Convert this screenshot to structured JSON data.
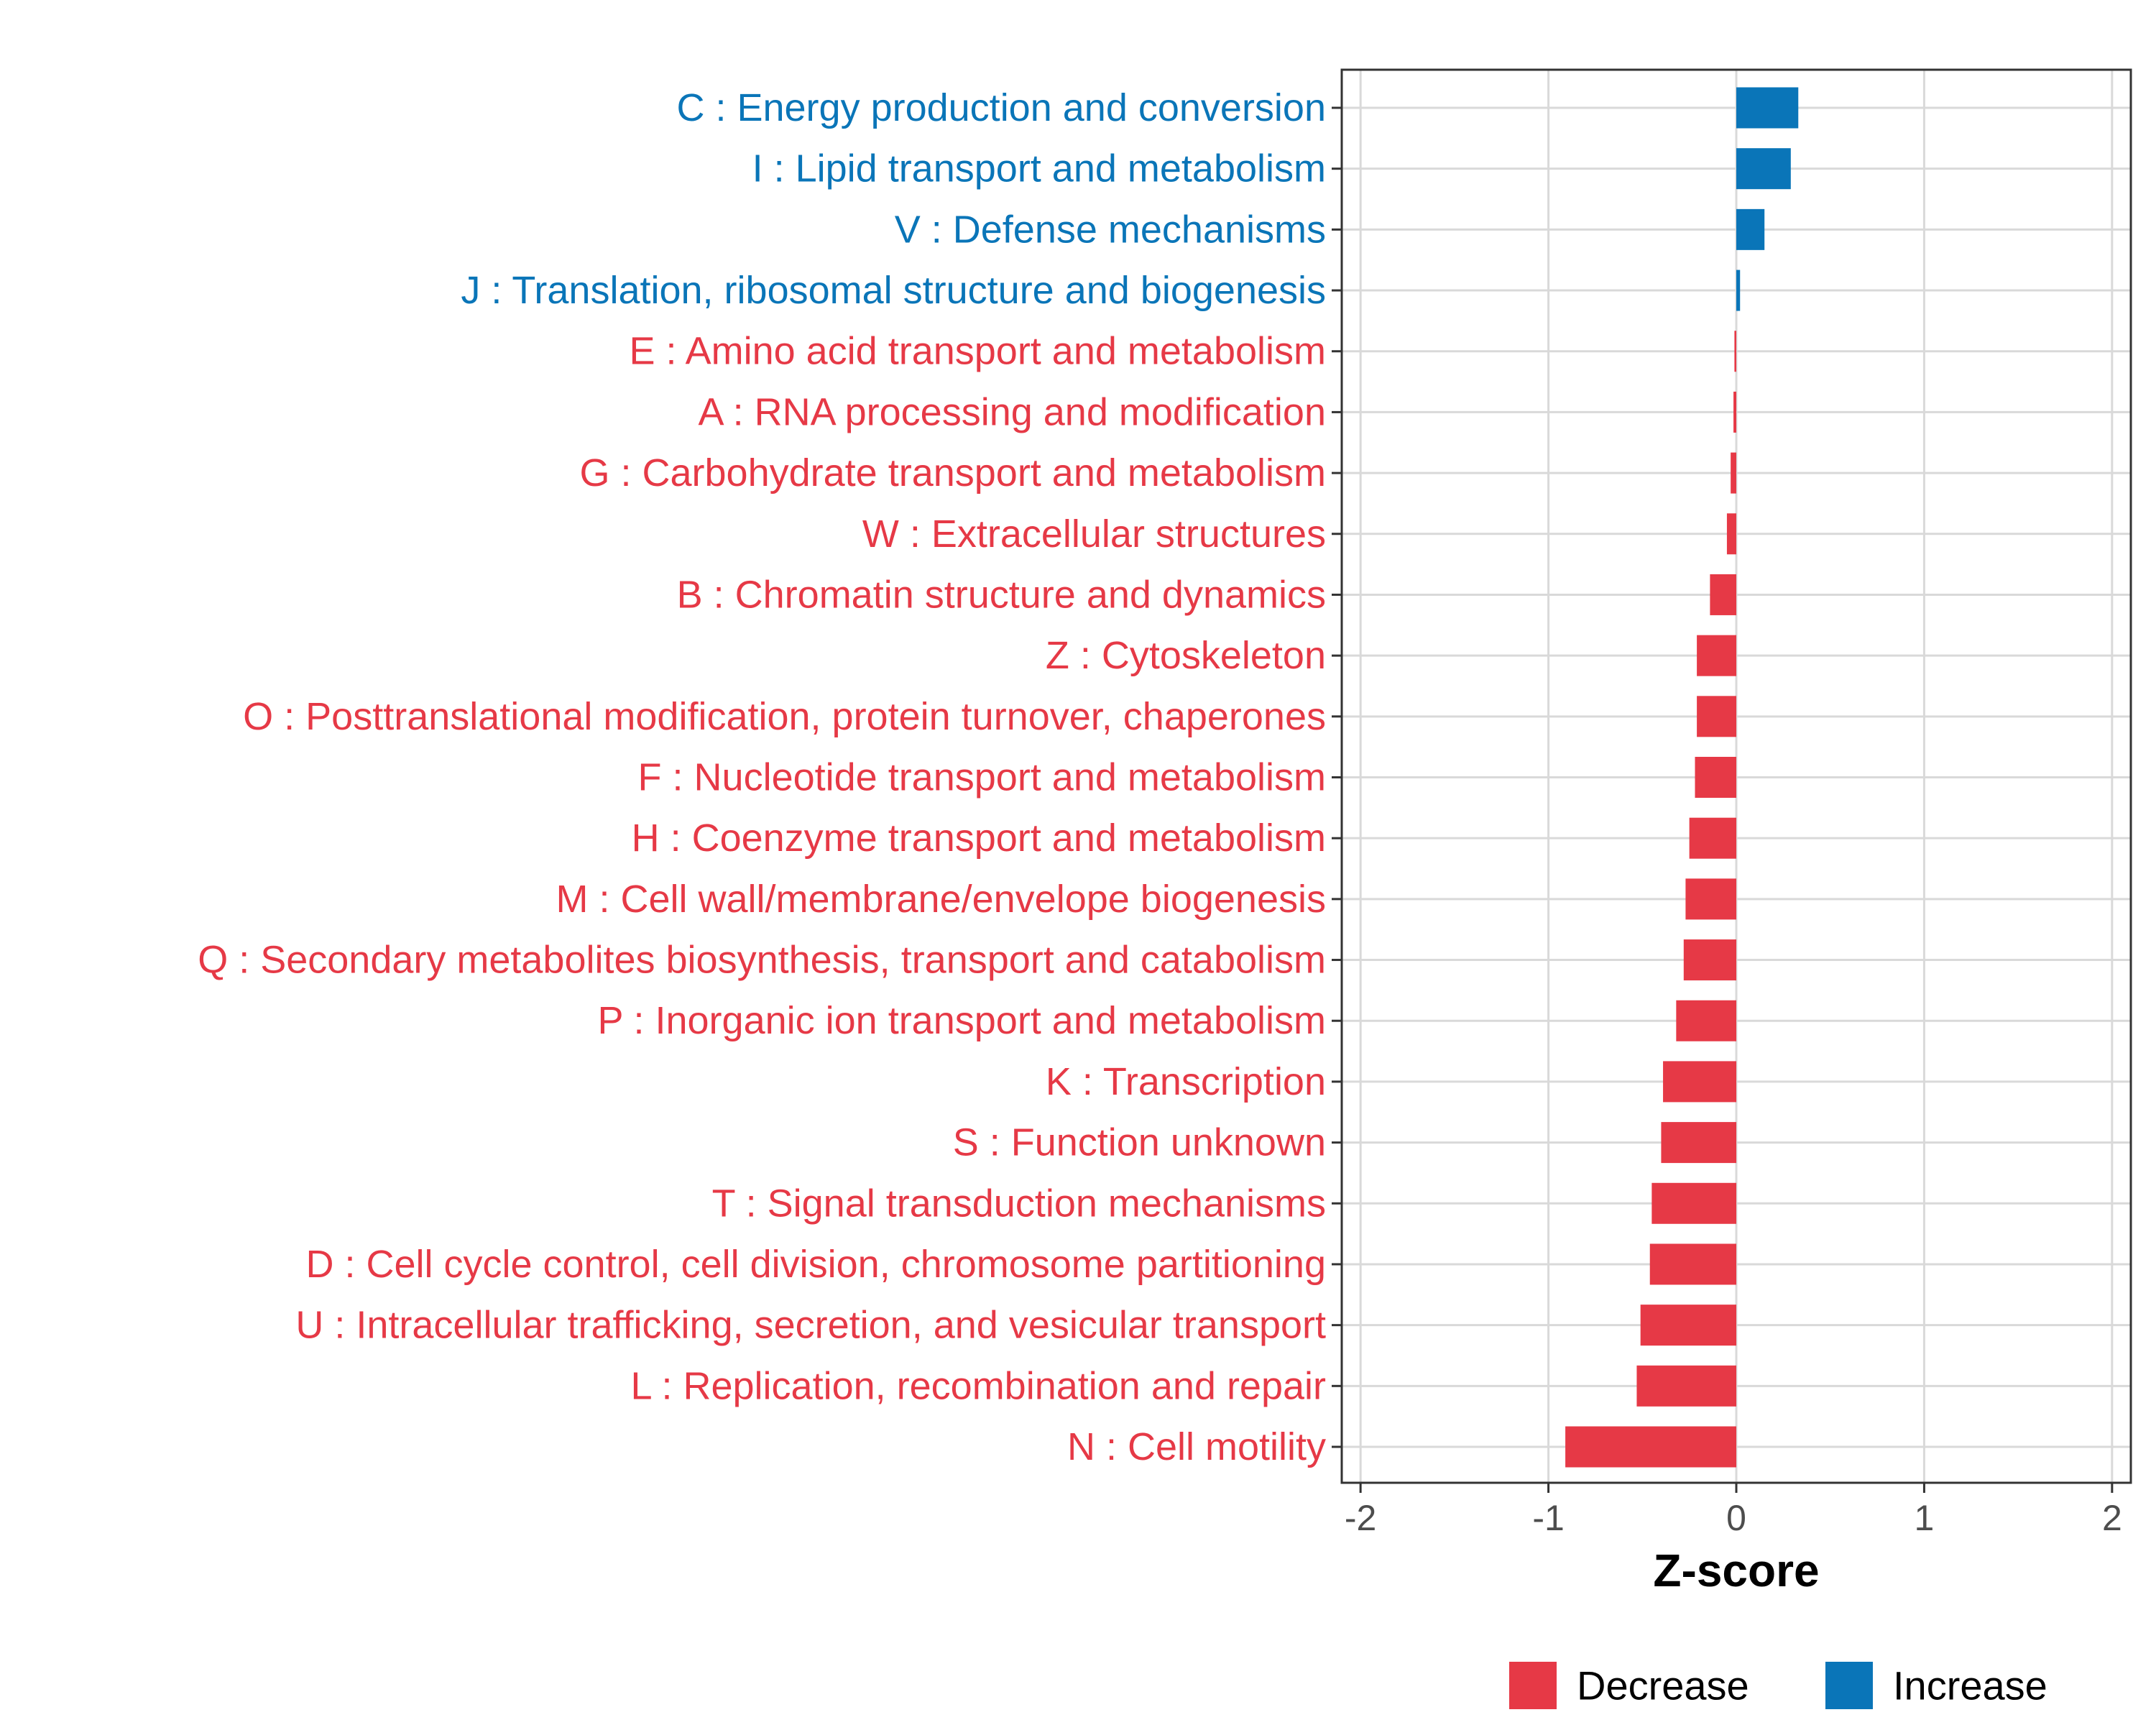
{
  "chart_data": {
    "type": "bar",
    "orientation": "horizontal",
    "title": "",
    "xlabel": "Z-score",
    "ylabel": "",
    "xlim": [
      -2.1,
      2.1
    ],
    "xticks": [
      -2,
      -1,
      0,
      1,
      2
    ],
    "xtick_labels": [
      "-2",
      "-1",
      "0",
      "1",
      "2"
    ],
    "grid": true,
    "legend_position": "bottom",
    "colors": {
      "Decrease": "#e63946",
      "Increase": "#0a75b8"
    },
    "legend": [
      {
        "label": "Decrease",
        "color": "#e63946"
      },
      {
        "label": "Increase",
        "color": "#0a75b8"
      }
    ],
    "categories": [
      "C : Energy production and conversion",
      "I : Lipid transport and metabolism",
      "V : Defense mechanisms",
      "J : Translation, ribosomal structure and biogenesis",
      "E : Amino acid transport and metabolism",
      "A : RNA processing and modification",
      "G : Carbohydrate transport and metabolism",
      "W : Extracellular structures",
      "B : Chromatin structure and dynamics",
      "Z : Cytoskeleton",
      "O : Posttranslational modification, protein turnover, chaperones",
      "F : Nucleotide transport and metabolism",
      "H : Coenzyme transport and metabolism",
      "M : Cell wall/membrane/envelope biogenesis",
      "Q : Secondary metabolites biosynthesis, transport and catabolism",
      "P : Inorganic ion transport and metabolism",
      "K : Transcription",
      "S : Function unknown",
      "T : Signal transduction mechanisms",
      "D : Cell cycle control, cell division, chromosome partitioning",
      "U : Intracellular trafficking, secretion, and vesicular transport",
      "L : Replication, recombination and repair",
      "N : Cell motility"
    ],
    "values": [
      0.33,
      0.29,
      0.15,
      0.02,
      -0.01,
      -0.015,
      -0.03,
      -0.05,
      -0.14,
      -0.21,
      -0.21,
      -0.22,
      -0.25,
      -0.27,
      -0.28,
      -0.32,
      -0.39,
      -0.4,
      -0.45,
      -0.46,
      -0.51,
      -0.53,
      -0.91
    ],
    "groups": [
      "Increase",
      "Increase",
      "Increase",
      "Increase",
      "Decrease",
      "Decrease",
      "Decrease",
      "Decrease",
      "Decrease",
      "Decrease",
      "Decrease",
      "Decrease",
      "Decrease",
      "Decrease",
      "Decrease",
      "Decrease",
      "Decrease",
      "Decrease",
      "Decrease",
      "Decrease",
      "Decrease",
      "Decrease",
      "Decrease"
    ]
  }
}
